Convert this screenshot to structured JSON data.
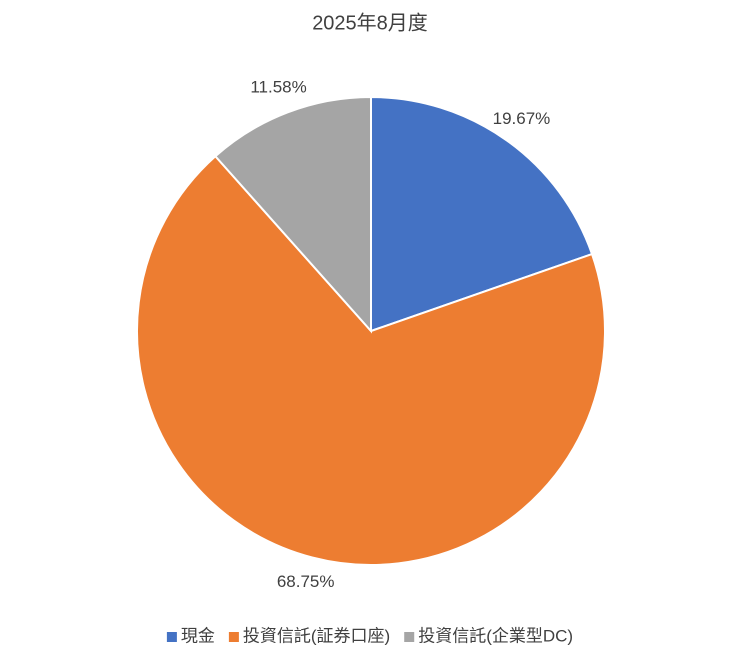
{
  "chart_data": {
    "type": "pie",
    "title": "2025年8月度",
    "categories": [
      "現金",
      "投資信託(証券口座)",
      "投資信託(企業型DC)"
    ],
    "values": [
      19.67,
      68.75,
      11.58
    ],
    "value_labels": [
      "19.67%",
      "68.75%",
      "11.58%"
    ],
    "colors": [
      "#4472c4",
      "#ed7d31",
      "#a5a5a5"
    ],
    "legend": "bottom"
  }
}
